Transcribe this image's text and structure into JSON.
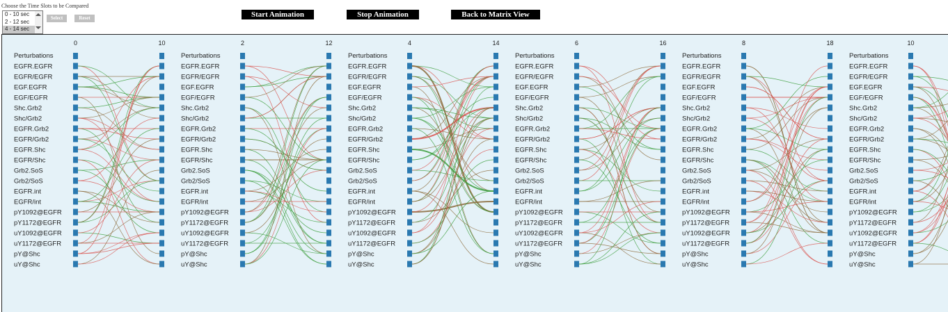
{
  "controls": {
    "caption": "Choose the Time Slots to be Compared",
    "slot_options": [
      "0 - 10 sec",
      "2 - 12 sec",
      "4 - 14 sec"
    ],
    "select_label": "Select",
    "reset_label": "Reset",
    "start_label": "Start Animation",
    "stop_label": "Stop Animation",
    "matrix_label": "Back to Matrix View"
  },
  "colors": {
    "panel_bg": "#e5f2f8",
    "node": "#2a79b0",
    "edge_red": "#d9534f",
    "edge_green": "#3c9e3c",
    "edge_brown": "#8b6a3a"
  },
  "panels": [
    {
      "left_time": "0",
      "right_time": "10"
    },
    {
      "left_time": "2",
      "right_time": "12"
    },
    {
      "left_time": "4",
      "right_time": "14"
    },
    {
      "left_time": "6",
      "right_time": "16"
    },
    {
      "left_time": "8",
      "right_time": "18"
    },
    {
      "left_time": "10",
      "right_time": ""
    }
  ],
  "header_label": "Perturbations",
  "species": [
    "EGFR.EGFR",
    "EGFR/EGFR",
    "EGF.EGFR",
    "EGF/EGFR",
    "Shc.Grb2",
    "Shc/Grb2",
    "EGFR.Grb2",
    "EGFR/Grb2",
    "EGFR.Shc",
    "EGFR/Shc",
    "Grb2.SoS",
    "Grb2/SoS",
    "EGFR.int",
    "EGFR/int",
    "pY1092@EGFR",
    "pY1172@EGFR",
    "uY1092@EGFR",
    "uY1172@EGFR",
    "pY@Shc",
    "uY@Shc"
  ]
}
